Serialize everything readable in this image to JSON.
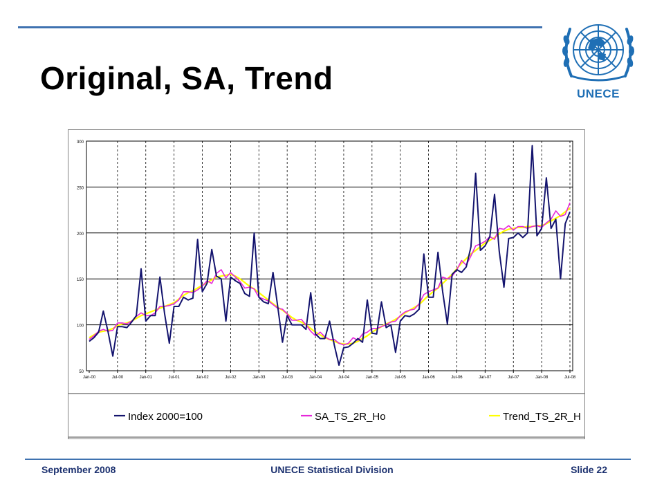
{
  "slide": {
    "title": "Original, SA, Trend",
    "logo_label": "UNECE",
    "footer_left": "September 2008",
    "footer_center": "UNECE Statistical Division",
    "footer_right": "Slide 22",
    "accent_color": "#3f72b0",
    "footer_text_color": "#1a2f6e",
    "logo_color": "#1f6fb5"
  },
  "chart_data": {
    "type": "line",
    "title": "",
    "xlabel": "",
    "ylabel": "",
    "ylim": [
      50,
      300
    ],
    "yticks": [
      50,
      100,
      150,
      200,
      250,
      300
    ],
    "grid": "horizontal solid, vertical dashed",
    "legend_position": "bottom",
    "x_tick_labels": [
      "Jan-00",
      "Jul-00",
      "Jan-01",
      "Jul-01",
      "Jan-02",
      "Jul-02",
      "Jan-03",
      "Jul-03",
      "Jan-04",
      "Jul-04",
      "Jan-05",
      "Jul-05",
      "Jan-06",
      "Jul-06",
      "Jan-07",
      "Jul-07",
      "Jan-08",
      "Jul-08"
    ],
    "x_start": "2000-01",
    "frequency": "monthly",
    "series": [
      {
        "name": "Index 2000=100",
        "color": "#14146e",
        "values": [
          82,
          86,
          92,
          115,
          92,
          66,
          98,
          98,
          97,
          103,
          110,
          161,
          104,
          110,
          110,
          152,
          112,
          80,
          120,
          120,
          130,
          127,
          129,
          193,
          136,
          145,
          182,
          153,
          150,
          104,
          152,
          148,
          145,
          134,
          131,
          200,
          130,
          125,
          123,
          157,
          120,
          81,
          110,
          100,
          100,
          100,
          95,
          135,
          90,
          85,
          85,
          104,
          78,
          56,
          75,
          76,
          80,
          85,
          81,
          127,
          91,
          90,
          125,
          97,
          100,
          70,
          104,
          110,
          109,
          112,
          117,
          177,
          130,
          130,
          179,
          136,
          101,
          155,
          160,
          157,
          163,
          185,
          265,
          181,
          186,
          196,
          242,
          180,
          141,
          194,
          195,
          200,
          195,
          200,
          295,
          197,
          205,
          260,
          205,
          215,
          150,
          210,
          223
        ]
      },
      {
        "name": "SA_TS_2R_Ho",
        "color": "#e628d9",
        "values": [
          84,
          88,
          93,
          95,
          93,
          94,
          102,
          102,
          101,
          104,
          109,
          113,
          110,
          110,
          113,
          120,
          120,
          121,
          123,
          127,
          136,
          136,
          135,
          138,
          142,
          148,
          145,
          156,
          160,
          151,
          157,
          152,
          147,
          140,
          141,
          139,
          130,
          128,
          126,
          122,
          118,
          117,
          112,
          105,
          105,
          106,
          100,
          93,
          88,
          92,
          87,
          84,
          84,
          80,
          78,
          80,
          86,
          83,
          90,
          92,
          96,
          96,
          98,
          100,
          103,
          104,
          110,
          114,
          116,
          117,
          123,
          133,
          136,
          138,
          140,
          152,
          150,
          153,
          160,
          170,
          165,
          175,
          186,
          188,
          191,
          196,
          193,
          205,
          204,
          208,
          203,
          207,
          207,
          205,
          207,
          208,
          206,
          211,
          215,
          224,
          218,
          220,
          233
        ]
      },
      {
        "name": "Trend_TS_2R_H",
        "color": "#ffff00",
        "values": [
          86,
          89,
          92,
          93,
          94,
          96,
          99,
          101,
          102,
          104,
          107,
          110,
          112,
          114,
          116,
          118,
          120,
          122,
          124,
          128,
          132,
          135,
          137,
          140,
          143,
          146,
          149,
          152,
          153,
          154,
          155,
          153,
          150,
          146,
          142,
          139,
          135,
          131,
          127,
          123,
          119,
          116,
          112,
          108,
          105,
          103,
          100,
          96,
          92,
          89,
          86,
          84,
          82,
          80,
          79,
          79,
          80,
          82,
          85,
          88,
          92,
          95,
          98,
          101,
          103,
          106,
          109,
          113,
          116,
          119,
          122,
          127,
          132,
          136,
          140,
          145,
          150,
          155,
          161,
          167,
          172,
          177,
          181,
          185,
          189,
          192,
          195,
          199,
          202,
          204,
          205,
          206,
          206,
          207,
          207,
          208,
          208,
          210,
          213,
          216,
          219,
          223,
          227
        ]
      }
    ]
  }
}
